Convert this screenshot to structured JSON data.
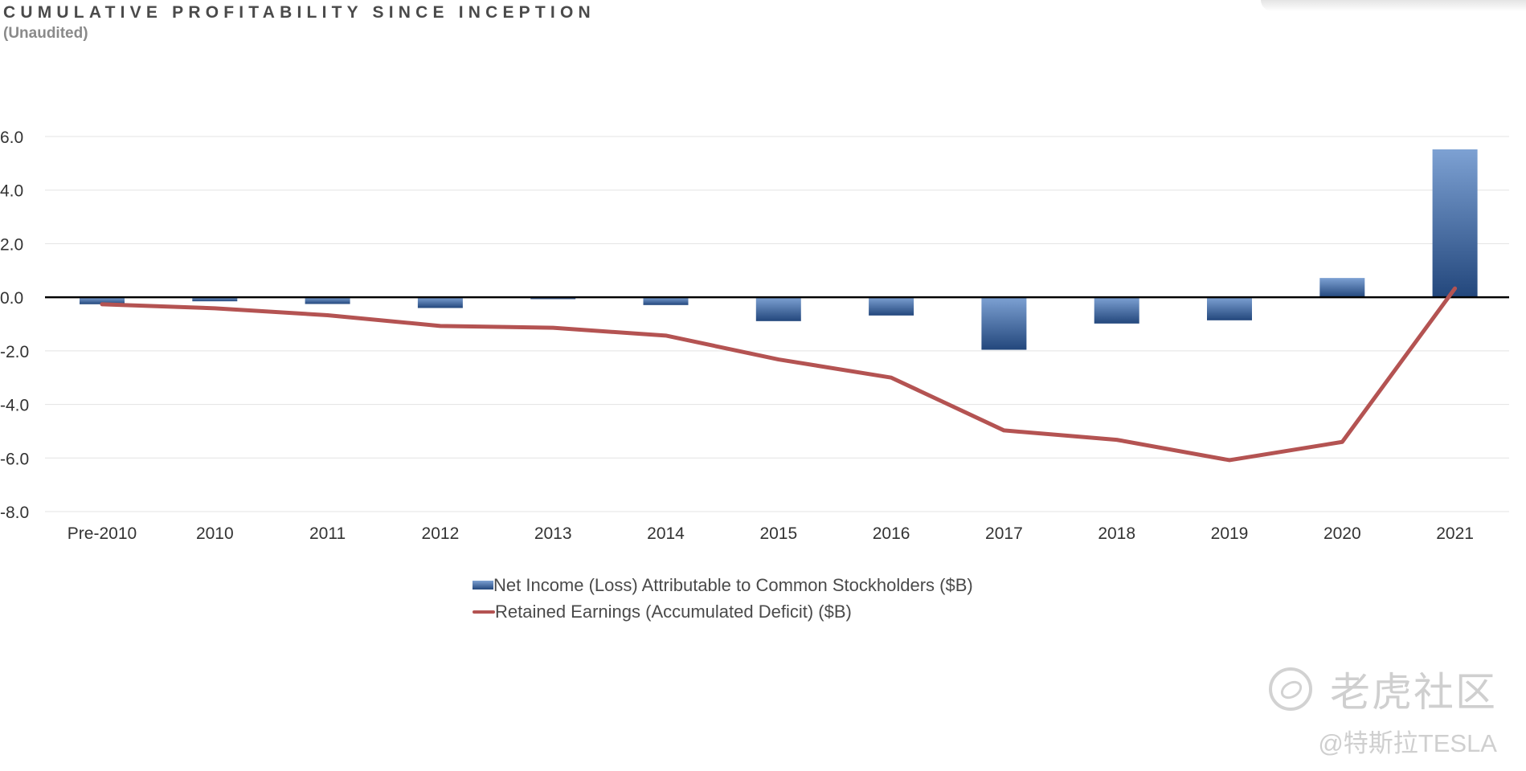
{
  "header": {
    "title": "CUMULATIVE PROFITABILITY SINCE INCEPTION",
    "subtitle": "(Unaudited)"
  },
  "colors": {
    "bar_top": "#7da1d3",
    "bar_bottom": "#23477c",
    "line": "#b45352",
    "zero_axis": "#000000",
    "grid": "#e3e3e3"
  },
  "chart_data": {
    "type": "bar",
    "categories": [
      "Pre-2010",
      "2010",
      "2011",
      "2012",
      "2013",
      "2014",
      "2015",
      "2016",
      "2017",
      "2018",
      "2019",
      "2020",
      "2021"
    ],
    "series": [
      {
        "name": "Net Income (Loss) Attributable to Common Stockholders ($B)",
        "kind": "bar",
        "values": [
          -0.26,
          -0.15,
          -0.25,
          -0.4,
          -0.07,
          -0.29,
          -0.89,
          -0.68,
          -1.96,
          -0.98,
          -0.86,
          0.72,
          5.52
        ]
      },
      {
        "name": "Retained Earnings (Accumulated Deficit) ($B)",
        "kind": "line",
        "values": [
          -0.26,
          -0.41,
          -0.67,
          -1.07,
          -1.14,
          -1.43,
          -2.32,
          -3.0,
          -4.97,
          -5.32,
          -6.08,
          -5.4,
          0.33
        ]
      }
    ],
    "yticks": [
      "6.0",
      "4.0",
      "2.0",
      "0.0",
      "-2.0",
      "-4.0",
      "-6.0",
      "-8.0"
    ],
    "ylim": [
      -8,
      6
    ],
    "grid": true,
    "legend_position": "bottom-center"
  },
  "watermark": {
    "brand": "老虎社区",
    "handle": "@特斯拉TESLA"
  }
}
